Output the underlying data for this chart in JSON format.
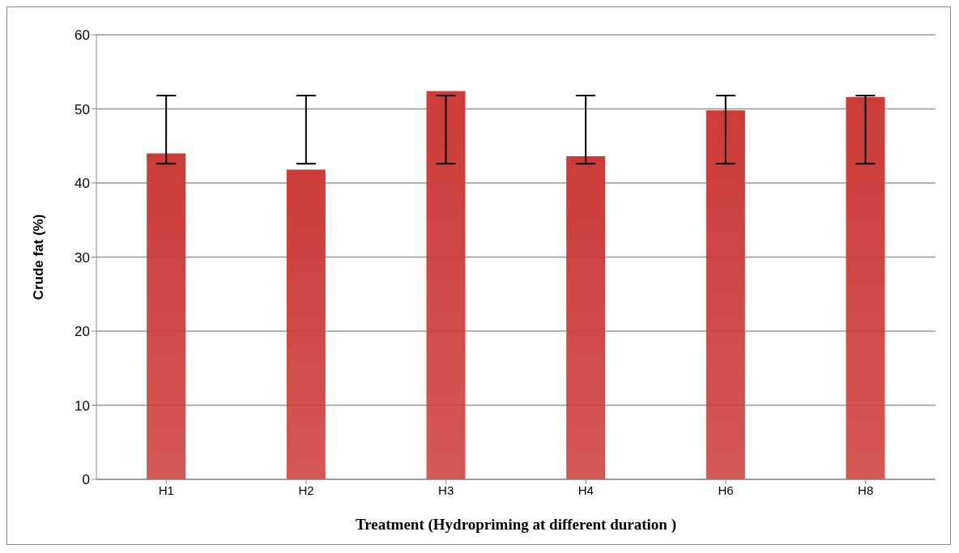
{
  "chart_data": {
    "type": "bar",
    "xlabel": "Treatment (Hydropriming at different duration )",
    "ylabel": "Crude fat (%)",
    "categories": [
      "H1",
      "H2",
      "H3",
      "H4",
      "H6",
      "H8"
    ],
    "values": [
      44.0,
      41.8,
      52.4,
      43.6,
      49.8,
      51.6
    ],
    "errors": [
      [
        42.6,
        51.8
      ],
      [
        42.6,
        51.8
      ],
      [
        42.6,
        51.8
      ],
      [
        42.6,
        51.8
      ],
      [
        42.6,
        51.8
      ],
      [
        42.6,
        51.8
      ]
    ],
    "color": "#cc3b37",
    "ylim": [
      0,
      60
    ],
    "yticks": [
      0,
      10,
      20,
      30,
      40,
      50,
      60
    ],
    "grid": "y"
  }
}
